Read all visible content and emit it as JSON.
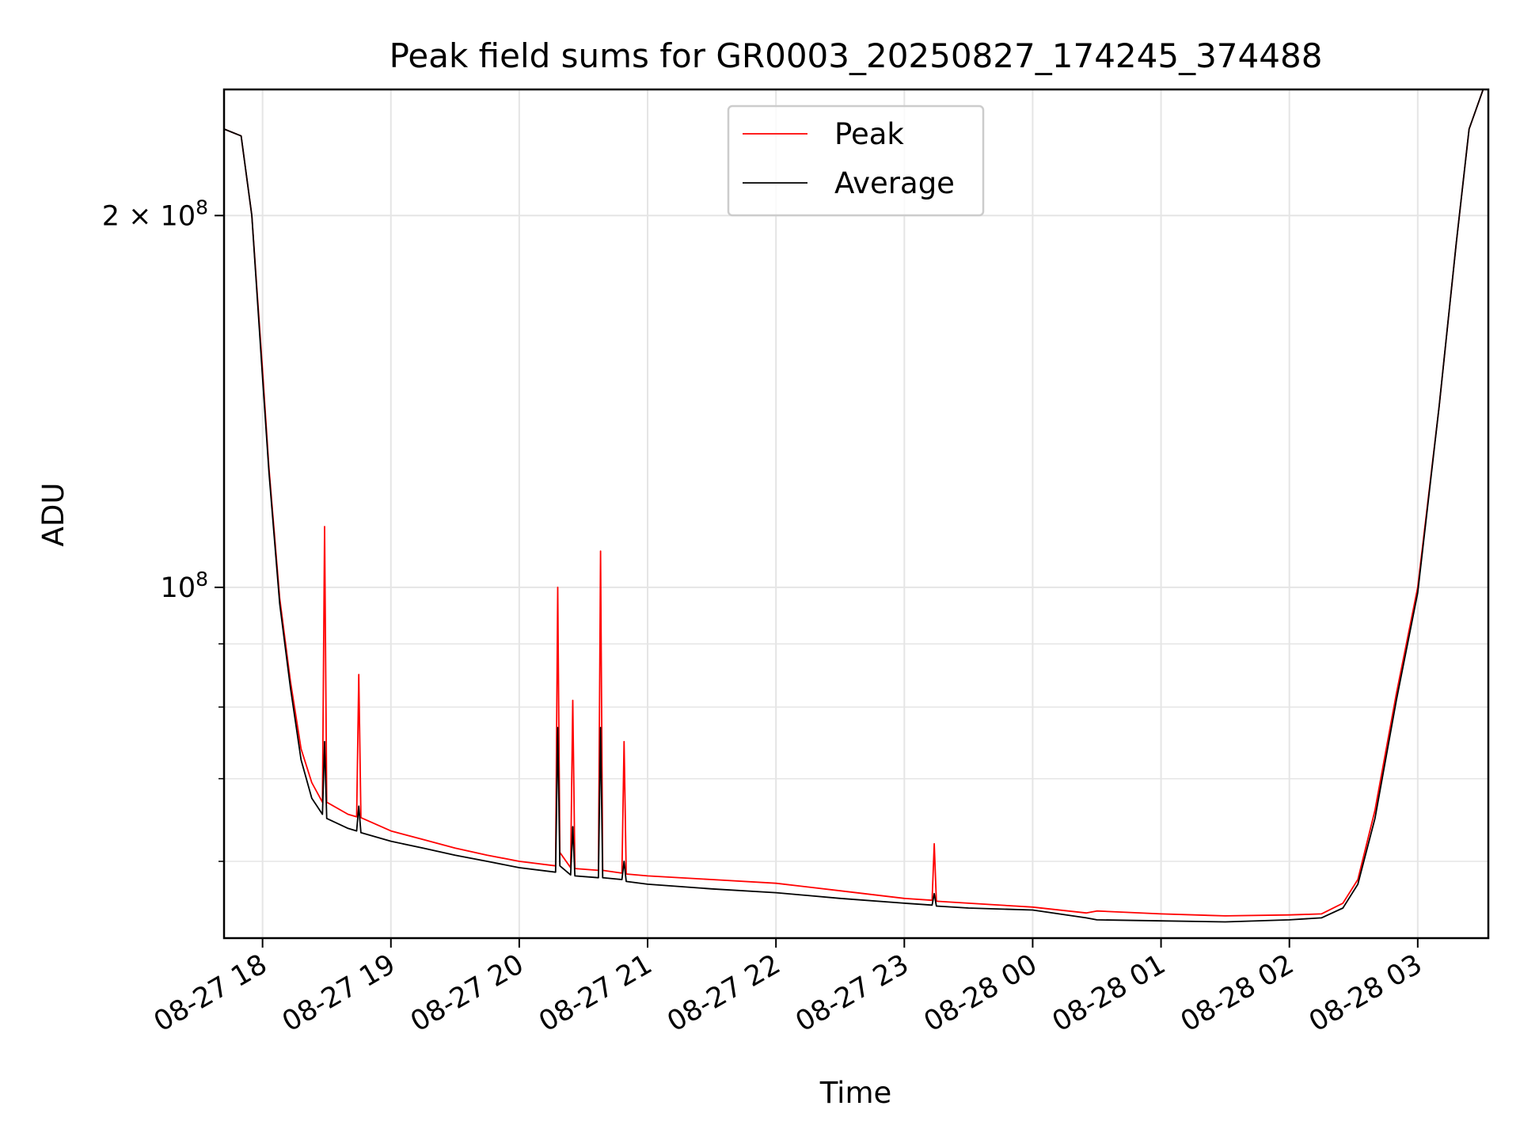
{
  "chart_data": {
    "type": "line",
    "title": "Peak field sums for GR0003_20250827_174245_374488",
    "xlabel": "Time",
    "ylabel": "ADU",
    "yscale": "log",
    "x_range": [
      "2025-08-27 17:42",
      "2025-08-28 03:33"
    ],
    "ylim": [
      52000000,
      253000000
    ],
    "grid": true,
    "legend_position": "top-center",
    "x_ticks": [
      {
        "t": "2025-08-27 18:00",
        "label": "08-27 18"
      },
      {
        "t": "2025-08-27 19:00",
        "label": "08-27 19"
      },
      {
        "t": "2025-08-27 20:00",
        "label": "08-27 20"
      },
      {
        "t": "2025-08-27 21:00",
        "label": "08-27 21"
      },
      {
        "t": "2025-08-27 22:00",
        "label": "08-27 22"
      },
      {
        "t": "2025-08-27 23:00",
        "label": "08-27 23"
      },
      {
        "t": "2025-08-28 00:00",
        "label": "08-28 00"
      },
      {
        "t": "2025-08-28 01:00",
        "label": "08-28 01"
      },
      {
        "t": "2025-08-28 02:00",
        "label": "08-28 02"
      },
      {
        "t": "2025-08-28 03:00",
        "label": "08-28 03"
      }
    ],
    "y_major_ticks": [
      {
        "value": 100000000,
        "label_base": "10",
        "label_exp": "8",
        "label_coef": ""
      },
      {
        "value": 200000000,
        "label_base": "10",
        "label_exp": "8",
        "label_coef": "2 × "
      }
    ],
    "y_minor_ticks": [
      60000000,
      70000000,
      80000000,
      90000000
    ],
    "series": [
      {
        "name": "Peak",
        "color": "#ff0000",
        "points": [
          [
            "2025-08-27 17:42",
            235000000
          ],
          [
            "2025-08-27 17:50",
            232000000
          ],
          [
            "2025-08-27 17:55",
            200000000
          ],
          [
            "2025-08-27 18:00",
            150000000
          ],
          [
            "2025-08-27 18:03",
            125000000
          ],
          [
            "2025-08-27 18:08",
            98000000
          ],
          [
            "2025-08-27 18:13",
            84000000
          ],
          [
            "2025-08-27 18:18",
            74000000
          ],
          [
            "2025-08-27 18:23",
            69500000
          ],
          [
            "2025-08-27 18:28",
            67000000
          ],
          [
            "2025-08-27 18:29",
            112000000
          ],
          [
            "2025-08-27 18:30",
            67000000
          ],
          [
            "2025-08-27 18:40",
            65500000
          ],
          [
            "2025-08-27 18:44",
            65200000
          ],
          [
            "2025-08-27 18:45",
            85000000
          ],
          [
            "2025-08-27 18:46",
            65100000
          ],
          [
            "2025-08-27 19:00",
            63500000
          ],
          [
            "2025-08-27 19:15",
            62500000
          ],
          [
            "2025-08-27 19:30",
            61500000
          ],
          [
            "2025-08-27 19:45",
            60700000
          ],
          [
            "2025-08-27 20:00",
            60000000
          ],
          [
            "2025-08-27 20:17",
            59500000
          ],
          [
            "2025-08-27 20:18",
            100000000
          ],
          [
            "2025-08-27 20:19",
            61000000
          ],
          [
            "2025-08-27 20:24",
            59300000
          ],
          [
            "2025-08-27 20:25",
            81000000
          ],
          [
            "2025-08-27 20:26",
            59200000
          ],
          [
            "2025-08-27 20:37",
            59000000
          ],
          [
            "2025-08-27 20:38",
            107000000
          ],
          [
            "2025-08-27 20:39",
            59000000
          ],
          [
            "2025-08-27 20:48",
            58700000
          ],
          [
            "2025-08-27 20:49",
            75000000
          ],
          [
            "2025-08-27 20:50",
            58600000
          ],
          [
            "2025-08-27 21:00",
            58400000
          ],
          [
            "2025-08-27 21:30",
            58000000
          ],
          [
            "2025-08-27 22:00",
            57600000
          ],
          [
            "2025-08-27 22:30",
            56800000
          ],
          [
            "2025-08-27 23:00",
            56000000
          ],
          [
            "2025-08-27 23:13",
            55800000
          ],
          [
            "2025-08-27 23:14",
            62000000
          ],
          [
            "2025-08-27 23:15",
            55700000
          ],
          [
            "2025-08-27 23:30",
            55500000
          ],
          [
            "2025-08-28 00:00",
            55100000
          ],
          [
            "2025-08-28 00:25",
            54500000
          ],
          [
            "2025-08-28 00:30",
            54700000
          ],
          [
            "2025-08-28 01:00",
            54400000
          ],
          [
            "2025-08-28 01:30",
            54200000
          ],
          [
            "2025-08-28 02:00",
            54300000
          ],
          [
            "2025-08-28 02:15",
            54400000
          ],
          [
            "2025-08-28 02:25",
            55500000
          ],
          [
            "2025-08-28 02:32",
            58000000
          ],
          [
            "2025-08-28 02:40",
            66000000
          ],
          [
            "2025-08-28 02:50",
            82000000
          ],
          [
            "2025-08-28 03:00",
            100000000
          ],
          [
            "2025-08-28 03:10",
            140000000
          ],
          [
            "2025-08-28 03:18",
            190000000
          ],
          [
            "2025-08-28 03:24",
            235000000
          ],
          [
            "2025-08-28 03:33",
            260000000
          ]
        ]
      },
      {
        "name": "Average",
        "color": "#000000",
        "points": [
          [
            "2025-08-27 17:42",
            235000000
          ],
          [
            "2025-08-27 17:50",
            232000000
          ],
          [
            "2025-08-27 17:55",
            200000000
          ],
          [
            "2025-08-27 18:00",
            148000000
          ],
          [
            "2025-08-27 18:03",
            124000000
          ],
          [
            "2025-08-27 18:08",
            97000000
          ],
          [
            "2025-08-27 18:13",
            83000000
          ],
          [
            "2025-08-27 18:18",
            72500000
          ],
          [
            "2025-08-27 18:23",
            67500000
          ],
          [
            "2025-08-27 18:28",
            65500000
          ],
          [
            "2025-08-27 18:29",
            75000000
          ],
          [
            "2025-08-27 18:30",
            65000000
          ],
          [
            "2025-08-27 18:40",
            63800000
          ],
          [
            "2025-08-27 18:44",
            63500000
          ],
          [
            "2025-08-27 18:45",
            66500000
          ],
          [
            "2025-08-27 18:46",
            63300000
          ],
          [
            "2025-08-27 19:00",
            62300000
          ],
          [
            "2025-08-27 19:15",
            61500000
          ],
          [
            "2025-08-27 19:30",
            60700000
          ],
          [
            "2025-08-27 19:45",
            60000000
          ],
          [
            "2025-08-27 20:00",
            59300000
          ],
          [
            "2025-08-27 20:17",
            58800000
          ],
          [
            "2025-08-27 20:18",
            77000000
          ],
          [
            "2025-08-27 20:19",
            59500000
          ],
          [
            "2025-08-27 20:24",
            58500000
          ],
          [
            "2025-08-27 20:25",
            64000000
          ],
          [
            "2025-08-27 20:26",
            58400000
          ],
          [
            "2025-08-27 20:37",
            58200000
          ],
          [
            "2025-08-27 20:38",
            77000000
          ],
          [
            "2025-08-27 20:39",
            58200000
          ],
          [
            "2025-08-27 20:48",
            58000000
          ],
          [
            "2025-08-27 20:49",
            60000000
          ],
          [
            "2025-08-27 20:50",
            57800000
          ],
          [
            "2025-08-27 21:00",
            57500000
          ],
          [
            "2025-08-27 21:30",
            57000000
          ],
          [
            "2025-08-27 22:00",
            56600000
          ],
          [
            "2025-08-27 22:30",
            56000000
          ],
          [
            "2025-08-27 23:00",
            55500000
          ],
          [
            "2025-08-27 23:13",
            55300000
          ],
          [
            "2025-08-27 23:14",
            56500000
          ],
          [
            "2025-08-27 23:15",
            55200000
          ],
          [
            "2025-08-27 23:30",
            55000000
          ],
          [
            "2025-08-28 00:00",
            54800000
          ],
          [
            "2025-08-28 00:25",
            54000000
          ],
          [
            "2025-08-28 00:30",
            53800000
          ],
          [
            "2025-08-28 01:00",
            53700000
          ],
          [
            "2025-08-28 01:30",
            53600000
          ],
          [
            "2025-08-28 02:00",
            53800000
          ],
          [
            "2025-08-28 02:15",
            54000000
          ],
          [
            "2025-08-28 02:25",
            55000000
          ],
          [
            "2025-08-28 02:32",
            57500000
          ],
          [
            "2025-08-28 02:40",
            65000000
          ],
          [
            "2025-08-28 02:50",
            81000000
          ],
          [
            "2025-08-28 03:00",
            99000000
          ],
          [
            "2025-08-28 03:10",
            140000000
          ],
          [
            "2025-08-28 03:18",
            190000000
          ],
          [
            "2025-08-28 03:24",
            235000000
          ],
          [
            "2025-08-28 03:33",
            260000000
          ]
        ]
      }
    ]
  }
}
